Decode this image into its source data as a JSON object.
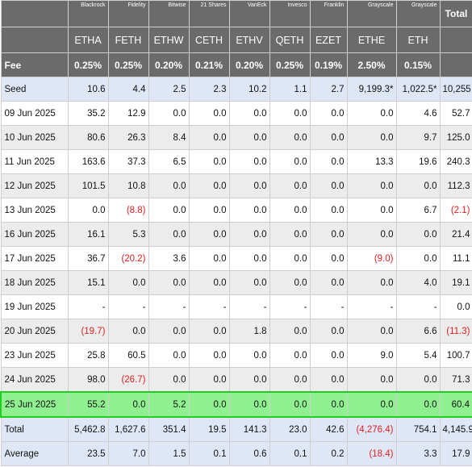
{
  "header": {
    "issuers": [
      "Blackrock",
      "Fidelity",
      "Bitwise",
      "21 Shares",
      "VanEck",
      "Invesco",
      "Franklin",
      "Grayscale",
      "Grayscale"
    ],
    "total_label": "Total",
    "tickers": [
      "ETHA",
      "FETH",
      "ETHW",
      "CETH",
      "ETHV",
      "QETH",
      "EZET",
      "ETHE",
      "ETH"
    ],
    "fee_label": "Fee",
    "fees": [
      "0.25%",
      "0.25%",
      "0.20%",
      "0.21%",
      "0.20%",
      "0.25%",
      "0.19%",
      "2.50%",
      "0.15%"
    ]
  },
  "rows": [
    {
      "label": "Seed",
      "values": [
        "10.6",
        "4.4",
        "2.5",
        "2.3",
        "10.2",
        "1.1",
        "2.7",
        "9,199.3*",
        "1,022.5*",
        "10,255"
      ],
      "style": "summary"
    },
    {
      "label": "09 Jun 2025",
      "values": [
        "35.2",
        "12.9",
        "0.0",
        "0.0",
        "0.0",
        "0.0",
        "0.0",
        "0.0",
        "4.6",
        "52.7"
      ],
      "style": "plain"
    },
    {
      "label": "10 Jun 2025",
      "values": [
        "80.6",
        "26.3",
        "8.4",
        "0.0",
        "0.0",
        "0.0",
        "0.0",
        "0.0",
        "9.7",
        "125.0"
      ],
      "style": "alt"
    },
    {
      "label": "11 Jun 2025",
      "values": [
        "163.6",
        "37.3",
        "6.5",
        "0.0",
        "0.0",
        "0.0",
        "0.0",
        "13.3",
        "19.6",
        "240.3"
      ],
      "style": "plain"
    },
    {
      "label": "12 Jun 2025",
      "values": [
        "101.5",
        "10.8",
        "0.0",
        "0.0",
        "0.0",
        "0.0",
        "0.0",
        "0.0",
        "0.0",
        "112.3"
      ],
      "style": "alt"
    },
    {
      "label": "13 Jun 2025",
      "values": [
        "0.0",
        "(8.8)",
        "0.0",
        "0.0",
        "0.0",
        "0.0",
        "0.0",
        "0.0",
        "6.7",
        "(2.1)"
      ],
      "style": "plain"
    },
    {
      "label": "16 Jun 2025",
      "values": [
        "16.1",
        "5.3",
        "0.0",
        "0.0",
        "0.0",
        "0.0",
        "0.0",
        "0.0",
        "0.0",
        "21.4"
      ],
      "style": "alt"
    },
    {
      "label": "17 Jun 2025",
      "values": [
        "36.7",
        "(20.2)",
        "3.6",
        "0.0",
        "0.0",
        "0.0",
        "0.0",
        "(9.0)",
        "0.0",
        "11.1"
      ],
      "style": "plain"
    },
    {
      "label": "18 Jun 2025",
      "values": [
        "15.1",
        "0.0",
        "0.0",
        "0.0",
        "0.0",
        "0.0",
        "0.0",
        "0.0",
        "4.0",
        "19.1"
      ],
      "style": "alt"
    },
    {
      "label": "19 Jun 2025",
      "values": [
        "-",
        "-",
        "-",
        "-",
        "-",
        "-",
        "-",
        "-",
        "-",
        "0.0"
      ],
      "style": "plain"
    },
    {
      "label": "20 Jun 2025",
      "values": [
        "(19.7)",
        "0.0",
        "0.0",
        "0.0",
        "1.8",
        "0.0",
        "0.0",
        "0.0",
        "6.6",
        "(11.3)"
      ],
      "style": "alt"
    },
    {
      "label": "23 Jun 2025",
      "values": [
        "25.8",
        "60.5",
        "0.0",
        "0.0",
        "0.0",
        "0.0",
        "0.0",
        "9.0",
        "5.4",
        "100.7"
      ],
      "style": "plain"
    },
    {
      "label": "24 Jun 2025",
      "values": [
        "98.0",
        "(26.7)",
        "0.0",
        "0.0",
        "0.0",
        "0.0",
        "0.0",
        "0.0",
        "0.0",
        "71.3"
      ],
      "style": "alt"
    },
    {
      "label": "25 Jun 2025",
      "values": [
        "55.2",
        "0.0",
        "5.2",
        "0.0",
        "0.0",
        "0.0",
        "0.0",
        "0.0",
        "0.0",
        "60.4"
      ],
      "style": "highlight"
    },
    {
      "label": "Total",
      "values": [
        "5,462.8",
        "1,627.6",
        "351.4",
        "19.5",
        "141.3",
        "23.0",
        "42.6",
        "(4,276.4)",
        "754.1",
        "4,145.9"
      ],
      "style": "summary"
    },
    {
      "label": "Average",
      "values": [
        "23.5",
        "7.0",
        "1.5",
        "0.1",
        "0.6",
        "0.1",
        "0.2",
        "(18.4)",
        "3.3",
        "17.9"
      ],
      "style": "summary"
    }
  ],
  "colors": {
    "negative": "#e02020",
    "highlight": "#8ff08f",
    "header": "#6b6b6b",
    "summary": "#dfe7f7"
  }
}
